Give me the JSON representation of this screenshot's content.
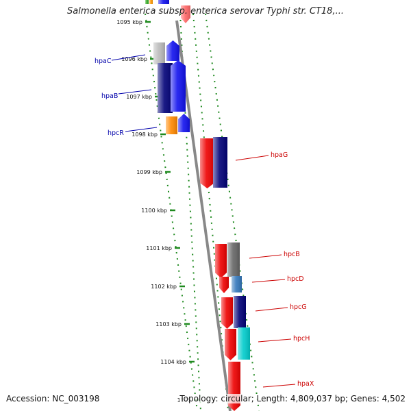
{
  "header": {
    "title": "Salmonella enterica subsp. enterica serovar Typhi str. CT18,..."
  },
  "footer": {
    "accession": "Accession: NC_003198",
    "summary": "Topology: circular; Length: 4,809,037 bp; Genes: 4,502"
  },
  "colors": {
    "tick": "#1f8a1f",
    "backbone": "#888888",
    "left_label": "#0000aa",
    "right_label": "#cc0000"
  },
  "ticks": [
    {
      "label": "1095 kbp"
    },
    {
      "label": "1096 kbp"
    },
    {
      "label": "1097 kbp"
    },
    {
      "label": "1098 kbp"
    },
    {
      "label": "1099 kbp"
    },
    {
      "label": "1100 kbp"
    },
    {
      "label": "1101 kbp"
    },
    {
      "label": "1102 kbp"
    },
    {
      "label": "1103 kbp"
    },
    {
      "label": "1104 kbp"
    },
    {
      "label": "1105"
    }
  ],
  "gene_labels": {
    "left": [
      "hpaC",
      "hpaB",
      "hpcR"
    ],
    "right": [
      "hpaG",
      "hpcB",
      "hpcD",
      "hpcG",
      "hpcH",
      "hpaX"
    ]
  },
  "features": [
    {
      "name": "top-green",
      "color": "#33aa22"
    },
    {
      "name": "top-orange",
      "color": "#ff9900"
    },
    {
      "name": "top-blue",
      "color": "#1111ee"
    },
    {
      "name": "top-pink",
      "color": "#ff6666"
    },
    {
      "name": "hpaC-grey",
      "color": "#bbbbbb"
    },
    {
      "name": "hpaC-blue",
      "color": "#1111ee"
    },
    {
      "name": "hpaB-navy",
      "color": "#000077"
    },
    {
      "name": "hpaB-blue",
      "color": "#1111ee"
    },
    {
      "name": "hpcR-orange",
      "color": "#ff8800"
    },
    {
      "name": "hpcR-blue",
      "color": "#1111ee"
    },
    {
      "name": "hpaG-red",
      "color": "#ee0000"
    },
    {
      "name": "hpaG-navy",
      "color": "#000077"
    },
    {
      "name": "hpcB-red",
      "color": "#ee0000"
    },
    {
      "name": "hpcB-grey",
      "color": "#666666"
    },
    {
      "name": "hpcD-red",
      "color": "#ee0000"
    },
    {
      "name": "hpcD-steel",
      "color": "#3377bb"
    },
    {
      "name": "hpcG-red",
      "color": "#ee0000"
    },
    {
      "name": "hpcG-navy",
      "color": "#000077"
    },
    {
      "name": "hpcH-red",
      "color": "#ee0000"
    },
    {
      "name": "hpcH-cyan",
      "color": "#00cccc"
    },
    {
      "name": "hpaX-red",
      "color": "#ee0000"
    }
  ]
}
